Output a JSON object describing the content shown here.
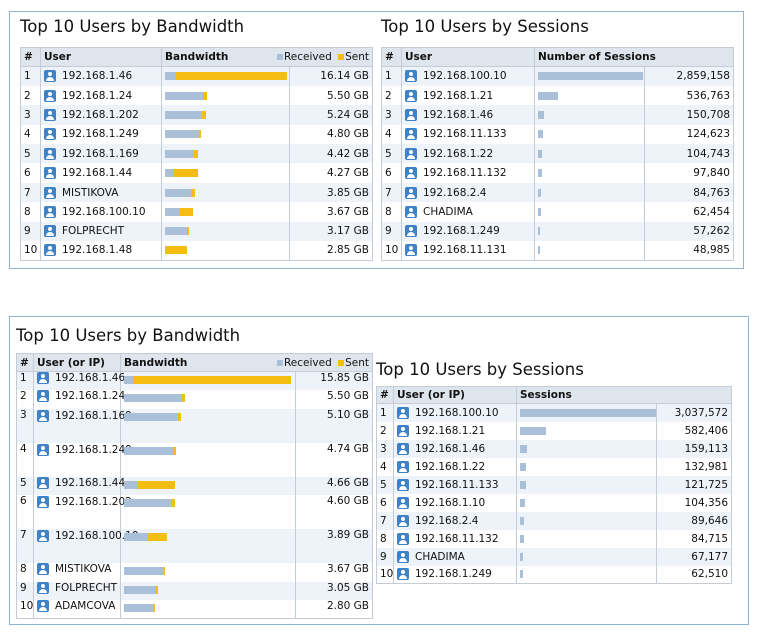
{
  "colors": {
    "received": "#a9c0d8",
    "sent": "#f5bd11",
    "panel_border": "#8fb3d3",
    "icon": "#3f83c6"
  },
  "report1": {
    "bandwidth": {
      "title": "Top 10 Users by Bandwidth",
      "cols": {
        "num": "#",
        "user": "User",
        "bandwidth": "Bandwidth"
      },
      "legend": {
        "received": "Received",
        "sent": "Sent"
      },
      "rows": [
        {
          "n": "1",
          "user": "192.168.1.46",
          "value": "16.14 GB",
          "received": 0.09,
          "sent": 0.91
        },
        {
          "n": "2",
          "user": "192.168.1.24",
          "value": "5.50 GB",
          "received": 0.31,
          "sent": 0.03
        },
        {
          "n": "3",
          "user": "192.168.1.202",
          "value": "5.24 GB",
          "received": 0.3,
          "sent": 0.03
        },
        {
          "n": "4",
          "user": "192.168.1.249",
          "value": "4.80 GB",
          "received": 0.28,
          "sent": 0.02
        },
        {
          "n": "5",
          "user": "192.168.1.169",
          "value": "4.42 GB",
          "received": 0.24,
          "sent": 0.03
        },
        {
          "n": "6",
          "user": "192.168.1.44",
          "value": "4.27 GB",
          "received": 0.07,
          "sent": 0.2
        },
        {
          "n": "7",
          "user": "MISTIKOVA",
          "value": "3.85 GB",
          "received": 0.21,
          "sent": 0.03
        },
        {
          "n": "8",
          "user": "192.168.100.10",
          "value": "3.67 GB",
          "received": 0.12,
          "sent": 0.11
        },
        {
          "n": "9",
          "user": "FOLPRECHT",
          "value": "3.17 GB",
          "received": 0.18,
          "sent": 0.02
        },
        {
          "n": "10",
          "user": "192.168.1.48",
          "value": "2.85 GB",
          "received": 0.01,
          "sent": 0.17
        }
      ]
    },
    "sessions": {
      "title": "Top 10 Users by Sessions",
      "cols": {
        "num": "#",
        "user": "User",
        "sessions": "Number of Sessions"
      },
      "rows": [
        {
          "n": "1",
          "user": "192.168.100.10",
          "value": "2,859,158",
          "ratio": 1.0
        },
        {
          "n": "2",
          "user": "192.168.1.21",
          "value": "536,763",
          "ratio": 0.19
        },
        {
          "n": "3",
          "user": "192.168.1.46",
          "value": "150,708",
          "ratio": 0.06
        },
        {
          "n": "4",
          "user": "192.168.11.133",
          "value": "124,623",
          "ratio": 0.05
        },
        {
          "n": "5",
          "user": "192.168.1.22",
          "value": "104,743",
          "ratio": 0.04
        },
        {
          "n": "6",
          "user": "192.168.11.132",
          "value": "97,840",
          "ratio": 0.035
        },
        {
          "n": "7",
          "user": "192.168.2.4",
          "value": "84,763",
          "ratio": 0.03
        },
        {
          "n": "8",
          "user": "CHADIMA",
          "value": "62,454",
          "ratio": 0.025
        },
        {
          "n": "9",
          "user": "192.168.1.249",
          "value": "57,262",
          "ratio": 0.02
        },
        {
          "n": "10",
          "user": "192.168.11.131",
          "value": "48,985",
          "ratio": 0.02
        }
      ]
    }
  },
  "report2": {
    "bandwidth": {
      "title": "Top 10 Users by Bandwidth",
      "cols": {
        "num": "#",
        "user": "User (or IP)",
        "bandwidth": "Bandwidth"
      },
      "legend": {
        "received": "Received",
        "sent": "Sent"
      },
      "rows": [
        {
          "n": "1",
          "user": "192.168.1.46",
          "value": "15.85 GB",
          "received": 0.05,
          "sent": 0.93
        },
        {
          "n": "2",
          "user": "192.168.1.24",
          "value": "5.50 GB",
          "received": 0.34,
          "sent": 0.02
        },
        {
          "n": "3",
          "user": "192.168.1.169",
          "value": "5.10 GB",
          "received": 0.32,
          "sent": 0.02
        },
        {
          "n": "4",
          "user": "192.168.1.249",
          "value": "4.74 GB",
          "received": 0.29,
          "sent": 0.02
        },
        {
          "n": "5",
          "user": "192.168.1.44",
          "value": "4.66 GB",
          "received": 0.08,
          "sent": 0.22
        },
        {
          "n": "6",
          "user": "192.168.1.202",
          "value": "4.60 GB",
          "received": 0.28,
          "sent": 0.02
        },
        {
          "n": "7",
          "user": "192.168.100.10",
          "value": "3.89 GB",
          "received": 0.14,
          "sent": 0.11
        },
        {
          "n": "8",
          "user": "MISTIKOVA",
          "value": "3.67 GB",
          "received": 0.23,
          "sent": 0.01
        },
        {
          "n": "9",
          "user": "FOLPRECHT",
          "value": "3.05 GB",
          "received": 0.19,
          "sent": 0.01
        },
        {
          "n": "10",
          "user": "ADAMCOVA",
          "value": "2.80 GB",
          "received": 0.17,
          "sent": 0.01
        }
      ]
    },
    "sessions": {
      "title": "Top 10 Users by Sessions",
      "cols": {
        "num": "#",
        "user": "User (or IP)",
        "sessions": "Sessions"
      },
      "rows": [
        {
          "n": "1",
          "user": "192.168.100.10",
          "value": "3,037,572",
          "ratio": 1.0
        },
        {
          "n": "2",
          "user": "192.168.1.21",
          "value": "582,406",
          "ratio": 0.19
        },
        {
          "n": "3",
          "user": "192.168.1.46",
          "value": "159,113",
          "ratio": 0.05
        },
        {
          "n": "4",
          "user": "192.168.1.22",
          "value": "132,981",
          "ratio": 0.044
        },
        {
          "n": "5",
          "user": "192.168.11.133",
          "value": "121,725",
          "ratio": 0.04
        },
        {
          "n": "6",
          "user": "192.168.1.10",
          "value": "104,356",
          "ratio": 0.034
        },
        {
          "n": "7",
          "user": "192.168.2.4",
          "value": "89,646",
          "ratio": 0.03
        },
        {
          "n": "8",
          "user": "192.168.11.132",
          "value": "84,715",
          "ratio": 0.028
        },
        {
          "n": "9",
          "user": "CHADIMA",
          "value": "67,177",
          "ratio": 0.022
        },
        {
          "n": "10",
          "user": "192.168.1.249",
          "value": "62,510",
          "ratio": 0.02
        }
      ]
    }
  }
}
